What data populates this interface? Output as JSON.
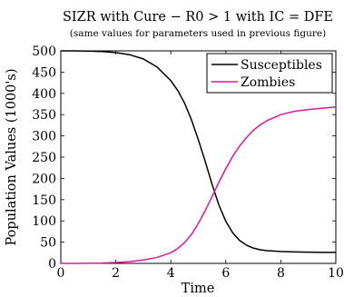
{
  "chart_data": {
    "type": "line",
    "title": "SIZR with Cure − R0 > 1 with IC = DFE",
    "subtitle": "(same values for parameters used in previous figure)",
    "xlabel": "Time",
    "ylabel": "Population Values (1000's)",
    "xlim": [
      0,
      10
    ],
    "ylim": [
      0,
      500
    ],
    "xticks": [
      "0",
      "2",
      "4",
      "6",
      "8",
      "10"
    ],
    "yticks": [
      "0",
      "50",
      "100",
      "150",
      "200",
      "250",
      "300",
      "350",
      "400",
      "450",
      "500"
    ],
    "legend_position": "top-right",
    "grid": false,
    "x": [
      0,
      0.5,
      1,
      1.5,
      2,
      2.5,
      3,
      3.5,
      4,
      4.25,
      4.5,
      4.75,
      5,
      5.25,
      5.5,
      5.75,
      6,
      6.25,
      6.5,
      6.75,
      7,
      7.25,
      7.5,
      8,
      8.5,
      9,
      9.5,
      10
    ],
    "series": [
      {
        "name": "Susceptibles",
        "color": "#000000",
        "values": [
          500,
          499.9,
          499.5,
          498.5,
          496,
          491,
          481,
          462,
          430,
          407,
          377,
          338,
          291,
          240,
          186,
          137,
          99,
          72,
          54,
          43,
          36,
          32,
          30,
          28,
          27,
          26.5,
          26,
          26
        ]
      },
      {
        "name": "Zombies",
        "color": "#e0169c",
        "values": [
          0,
          0.1,
          0.3,
          0.8,
          2,
          4,
          8,
          14,
          25,
          35,
          49,
          68,
          94,
          124,
          157,
          191,
          223,
          252,
          276,
          296,
          313,
          326,
          336,
          350,
          358,
          362,
          365,
          368
        ]
      }
    ]
  }
}
